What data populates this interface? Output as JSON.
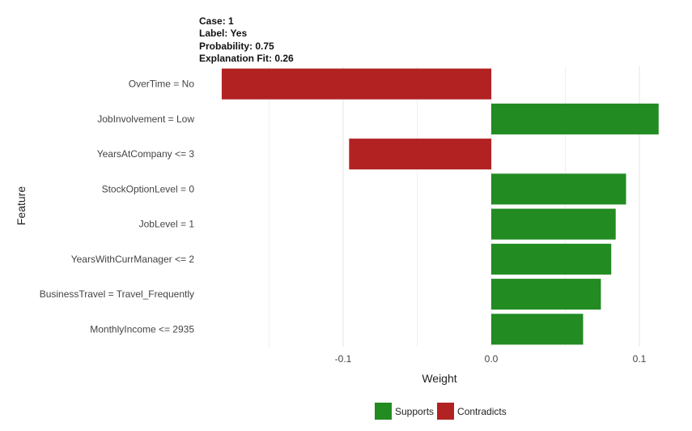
{
  "header": {
    "case": "Case: 1",
    "label": "Label: Yes",
    "probability": "Probability: 0.75",
    "fit": "Explanation Fit: 0.26"
  },
  "chart_data": {
    "type": "bar",
    "orientation": "horizontal",
    "xlabel": "Weight",
    "ylabel": "Feature",
    "xlim": [
      -0.19,
      0.115
    ],
    "x_ticks": [
      -0.1,
      0.0,
      0.1
    ],
    "x_tick_labels": [
      "-0.1",
      "0.0",
      "0.1"
    ],
    "grid": true,
    "legend_position": "bottom",
    "categories": [
      "OverTime = No",
      "JobInvolvement = Low",
      "YearsAtCompany <= 3",
      "StockOptionLevel = 0",
      "JobLevel = 1",
      "YearsWithCurrManager <= 2",
      "BusinessTravel = Travel_Frequently",
      "MonthlyIncome <= 2935"
    ],
    "values": [
      -0.182,
      0.113,
      -0.096,
      0.091,
      0.084,
      0.081,
      0.074,
      0.062
    ],
    "support": [
      "Contradicts",
      "Supports",
      "Contradicts",
      "Supports",
      "Supports",
      "Supports",
      "Supports",
      "Supports"
    ],
    "legend": [
      {
        "name": "Supports",
        "color": "#228b22"
      },
      {
        "name": "Contradicts",
        "color": "#b22222"
      }
    ]
  }
}
